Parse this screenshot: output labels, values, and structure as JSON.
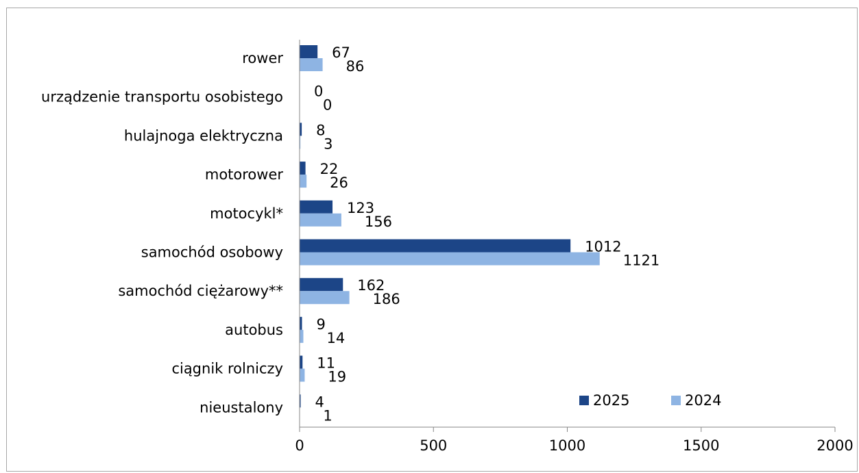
{
  "chart_data": {
    "type": "bar",
    "orientation": "horizontal",
    "categories": [
      "rower",
      "urządzenie transportu osobistego",
      "hulajnoga elektryczna",
      "motorower",
      "motocykl*",
      "samochód osobowy",
      "samochód ciężarowy**",
      "autobus",
      "ciągnik rolniczy",
      "nieustalony"
    ],
    "series": [
      {
        "name": "2025",
        "color": "#1c4587",
        "values": [
          67,
          0,
          8,
          22,
          123,
          1012,
          162,
          9,
          11,
          4
        ]
      },
      {
        "name": "2024",
        "color": "#8eb4e3",
        "values": [
          86,
          0,
          3,
          26,
          156,
          1121,
          186,
          14,
          19,
          1
        ]
      }
    ],
    "xlim": [
      0,
      2000
    ],
    "xticks": [
      "0",
      "500",
      "1000",
      "1500",
      "2000"
    ],
    "grid": false,
    "legend_position": "bottom-right"
  }
}
